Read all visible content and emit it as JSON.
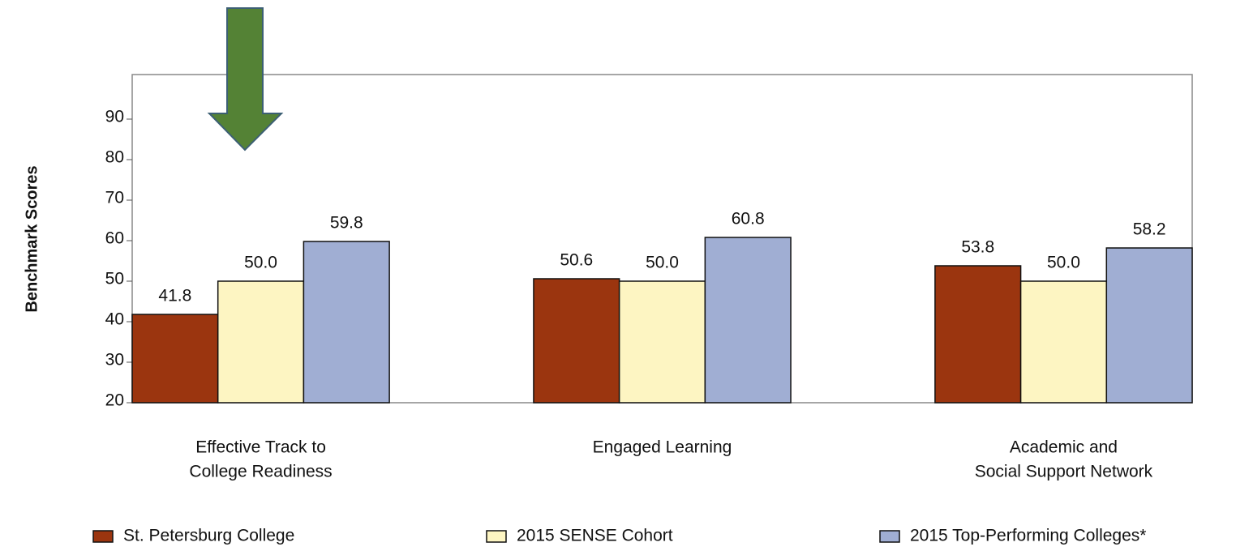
{
  "chart_data": {
    "type": "bar",
    "y_label": "Benchmark Scores",
    "categories": [
      [
        "Effective Track to",
        "College Readiness"
      ],
      [
        "Engaged Learning"
      ],
      [
        "Academic and",
        "Social Support Network"
      ]
    ],
    "series": [
      {
        "name": "St. Petersburg College",
        "color": "#9b350f",
        "values": [
          41.8,
          50.6,
          53.8
        ],
        "value_labels": [
          "41.8",
          "50.6",
          "53.8"
        ]
      },
      {
        "name": "2015 SENSE Cohort",
        "color": "#fdf5c2",
        "values": [
          50,
          50,
          50
        ],
        "value_labels": [
          "50.0",
          "50.0",
          "50.0"
        ]
      },
      {
        "name": "2015 Top-Performing Colleges*",
        "color": "#a0aed3",
        "values": [
          59.8,
          60.8,
          58.2
        ],
        "value_labels": [
          "59.8",
          "60.8",
          "58.2"
        ]
      }
    ],
    "ylim": [
      20,
      101
    ],
    "yticks": [
      20,
      30,
      40,
      50,
      60,
      70,
      80,
      90
    ]
  }
}
